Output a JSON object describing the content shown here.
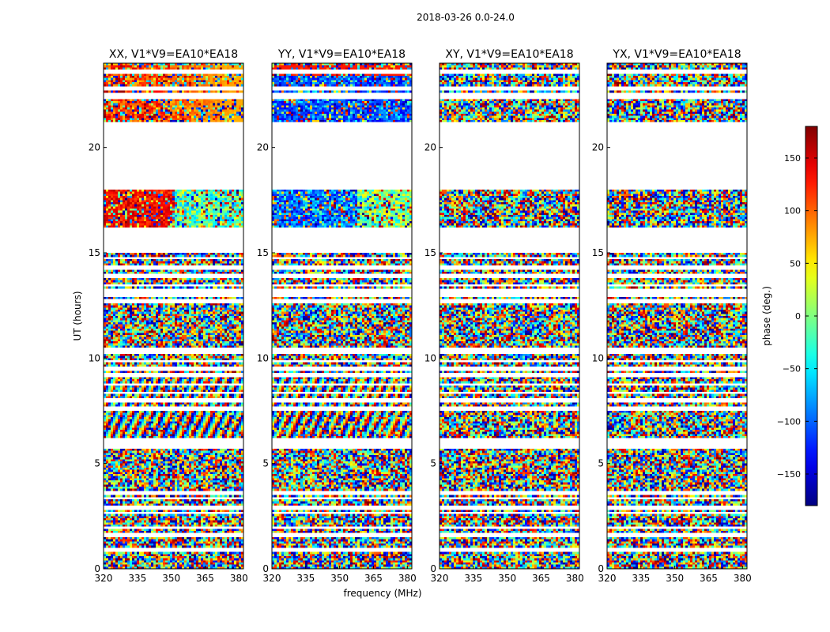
{
  "chart_data": {
    "type": "heatmap",
    "suptitle": "2018-03-26 0.0-24.0",
    "xlabel": "frequency (MHz)",
    "ylabel": "UT (hours)",
    "xlim": [
      320,
      382
    ],
    "ylim": [
      0,
      24
    ],
    "xticks": [
      320,
      335,
      350,
      365,
      380
    ],
    "yticks": [
      0,
      5,
      10,
      15,
      20
    ],
    "panels": [
      {
        "title": "XX, V1*V9=EA10*EA18",
        "pattern": "xx"
      },
      {
        "title": "YY, V1*V9=EA10*EA18",
        "pattern": "yy"
      },
      {
        "title": "XY, V1*V9=EA10*EA18",
        "pattern": "noise"
      },
      {
        "title": "YX, V1*V9=EA10*EA18",
        "pattern": "noise"
      }
    ],
    "flagged_ut_hours": [
      [
        18.05,
        21.2
      ],
      [
        16.05,
        16.2
      ],
      [
        15.0,
        16.05
      ],
      [
        23.5,
        23.65
      ],
      [
        22.35,
        22.55
      ],
      [
        22.75,
        22.9
      ],
      [
        14.75,
        14.85
      ],
      [
        14.25,
        14.35
      ],
      [
        13.85,
        13.95
      ],
      [
        13.4,
        13.5
      ],
      [
        13.15,
        13.25
      ],
      [
        12.95,
        13.05
      ],
      [
        12.65,
        12.75
      ],
      [
        10.25,
        10.45
      ],
      [
        9.8,
        9.9
      ],
      [
        9.45,
        9.55
      ],
      [
        9.1,
        9.25
      ],
      [
        8.7,
        8.8
      ],
      [
        8.3,
        8.4
      ],
      [
        7.95,
        8.05
      ],
      [
        7.55,
        7.65
      ],
      [
        6.05,
        6.15
      ],
      [
        5.75,
        5.95
      ],
      [
        4.45,
        4.55
      ],
      [
        3.55,
        3.65
      ],
      [
        3.3,
        3.4
      ],
      [
        2.85,
        2.95
      ],
      [
        2.6,
        2.7
      ],
      [
        1.95,
        2.05
      ],
      [
        1.55,
        1.65
      ],
      [
        0.85,
        0.95
      ]
    ],
    "colorbar": {
      "label": "phase (deg.)",
      "range": [
        -180,
        180
      ],
      "ticks": [
        150,
        100,
        50,
        0,
        -50,
        -100,
        -150
      ],
      "tick_labels": [
        "150",
        "100",
        "50",
        "0",
        "−50",
        "−100",
        "−150"
      ],
      "colormap": "jet"
    }
  }
}
